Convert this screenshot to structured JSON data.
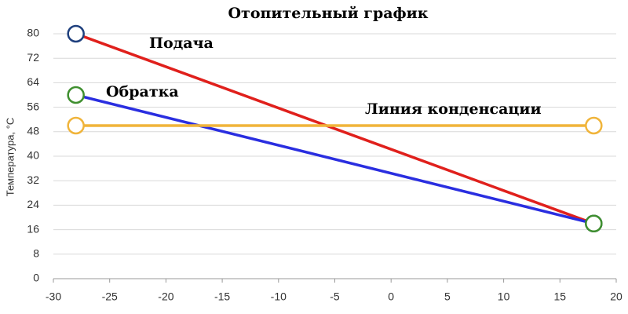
{
  "chart_data": {
    "type": "line",
    "title": "Отопительный график",
    "y_label": "Температура, °С",
    "x": [
      -28,
      18
    ],
    "series": [
      {
        "name": "Подача",
        "color": "#e0201c",
        "marker_color": "#1e3f7d",
        "values": [
          80,
          18
        ]
      },
      {
        "name": "Обратка",
        "color": "#2a2ee0",
        "marker_color": "#3f8f2f",
        "values": [
          60,
          18
        ]
      },
      {
        "name": "Линия конденсации",
        "color": "#f0b43a",
        "marker_color": "#f0b43a",
        "values": [
          50,
          50
        ]
      }
    ],
    "xlim": [
      -30,
      20
    ],
    "xticks": [
      -30,
      -25,
      -20,
      -15,
      -10,
      -5,
      0,
      5,
      10,
      15,
      20
    ],
    "ylim": [
      0,
      80
    ],
    "yticks": [
      0,
      8,
      16,
      24,
      32,
      40,
      48,
      56,
      64,
      72,
      80
    ],
    "grid": true
  }
}
